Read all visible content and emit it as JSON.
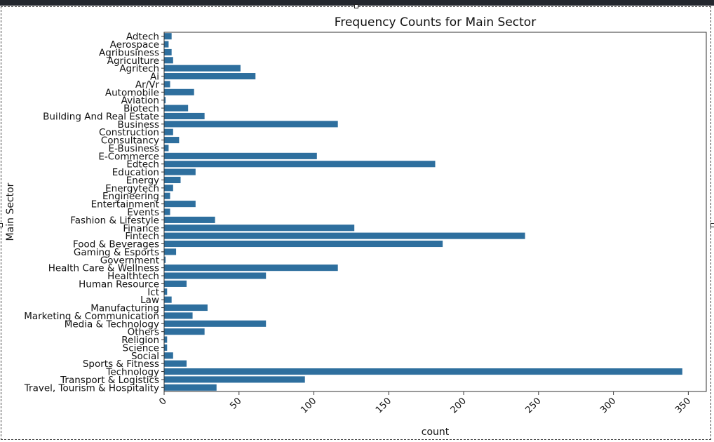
{
  "chart_data": {
    "type": "bar",
    "orientation": "horizontal",
    "title": "Frequency Counts for Main Sector",
    "xlabel": "count",
    "ylabel": "Main Sector",
    "xlim": [
      0,
      362
    ],
    "xticks": [
      0,
      50,
      100,
      150,
      200,
      250,
      300,
      350
    ],
    "grid": false,
    "bar_color": "#2e6f9e",
    "categories": [
      "Adtech",
      "Aerospace",
      "Agribusiness",
      "Agriculture",
      "Agritech",
      "Ai",
      "Ar/Vr",
      "Automobile",
      "Aviation",
      "Biotech",
      "Building And Real Estate",
      "Business",
      "Construction",
      "Consultancy",
      "E-Business",
      "E-Commerce",
      "Edtech",
      "Education",
      "Energy",
      "Energytech",
      "Engineering",
      "Entertainment",
      "Events",
      "Fashion & Lifestyle",
      "Finance",
      "Fintech",
      "Food & Beverages",
      "Gaming & Esports",
      "Government",
      "Health Care & Wellness",
      "Healthtech",
      "Human Resource",
      "Ict",
      "Law",
      "Manufacturing",
      "Marketing & Communication",
      "Media & Technology",
      "Others",
      "Religion",
      "Science",
      "Social",
      "Sports & Fitness",
      "Technology",
      "Transport & Logistics",
      "Travel, Tourism & Hospitality"
    ],
    "values": [
      5,
      3,
      5,
      6,
      51,
      61,
      4,
      20,
      1,
      16,
      27,
      116,
      6,
      10,
      3,
      102,
      181,
      21,
      11,
      6,
      4,
      21,
      4,
      34,
      127,
      241,
      186,
      8,
      1,
      116,
      68,
      15,
      2,
      5,
      29,
      19,
      68,
      27,
      2,
      2,
      6,
      15,
      346,
      94,
      35
    ]
  }
}
